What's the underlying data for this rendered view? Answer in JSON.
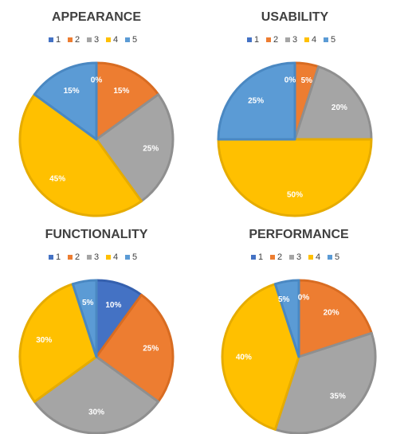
{
  "colors": {
    "1": "#4472C4",
    "2": "#ED7D31",
    "3": "#A5A5A5",
    "4": "#FFC000",
    "5": "#5B9BD5"
  },
  "border_colors": {
    "1": "#3560AE",
    "2": "#D86C22",
    "3": "#8F8F8F",
    "4": "#E6AC00",
    "5": "#4A88C2"
  },
  "chart_data": [
    {
      "type": "pie",
      "title": "APPEARANCE",
      "legend": [
        "1",
        "2",
        "3",
        "4",
        "5"
      ],
      "legend_position": "top",
      "values": [
        0,
        15,
        25,
        45,
        15
      ],
      "labels": [
        "0%",
        "15%",
        "25%",
        "45%",
        "15%"
      ]
    },
    {
      "type": "pie",
      "title": "USABILITY",
      "legend": [
        "1",
        "2",
        "3",
        "4",
        "5"
      ],
      "legend_position": "top",
      "values": [
        0,
        5,
        20,
        50,
        25
      ],
      "labels": [
        "0%",
        "5%",
        "20%",
        "50%",
        "25%"
      ]
    },
    {
      "type": "pie",
      "title": "FUNCTIONALITY",
      "legend": [
        "1",
        "2",
        "3",
        "4",
        "5"
      ],
      "legend_position": "top",
      "values": [
        10,
        25,
        30,
        30,
        5
      ],
      "labels": [
        "10%",
        "25%",
        "30%",
        "30%",
        "5%"
      ]
    },
    {
      "type": "pie",
      "title": "PERFORMANCE",
      "legend": [
        "1",
        "2",
        "3",
        "4",
        "5"
      ],
      "legend_position": "top",
      "values": [
        0,
        20,
        35,
        40,
        5
      ],
      "labels": [
        "0%",
        "20%",
        "35%",
        "40%",
        "5%"
      ]
    }
  ]
}
